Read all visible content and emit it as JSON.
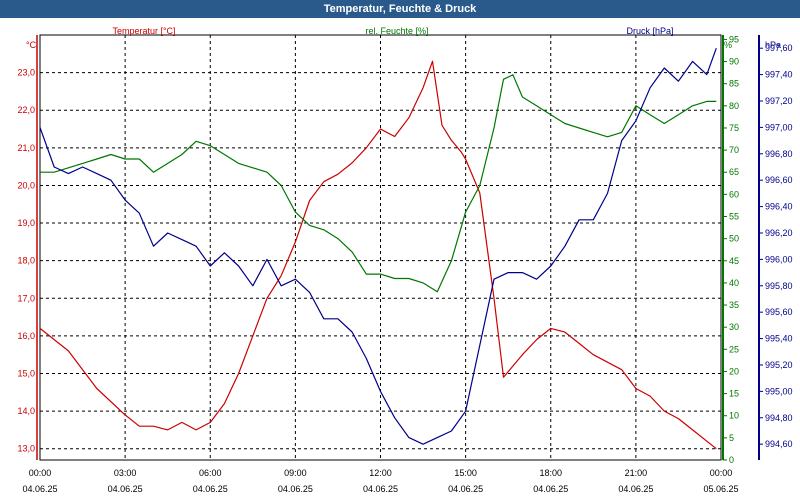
{
  "window_title": "Temperatur, Feuchte & Druck",
  "chart_data": {
    "type": "line",
    "title": "Temperatur, Feuchte & Druck",
    "grid": true,
    "x_ticks": [
      {
        "time": "00:00",
        "date": "04.06.25"
      },
      {
        "time": "03:00",
        "date": "04.06.25"
      },
      {
        "time": "06:00",
        "date": "04.06.25"
      },
      {
        "time": "09:00",
        "date": "04.06.25"
      },
      {
        "time": "12:00",
        "date": "04.06.25"
      },
      {
        "time": "15:00",
        "date": "04.06.25"
      },
      {
        "time": "18:00",
        "date": "04.06.25"
      },
      {
        "time": "21:00",
        "date": "04.06.25"
      },
      {
        "time": "00:00",
        "date": "05.06.25"
      }
    ],
    "axes": {
      "temperature": {
        "label": "Temperatur [°C]",
        "unit": "°C",
        "color": "#cc0000",
        "range": [
          12.7,
          24.0
        ],
        "ticks": [
          "13,0",
          "14,0",
          "15,0",
          "16,0",
          "17,0",
          "18,0",
          "19,0",
          "20,0",
          "21,0",
          "22,0",
          "23,0"
        ]
      },
      "humidity": {
        "label": "rel. Feuchte [%]",
        "unit": "%",
        "color": "#007700",
        "range": [
          0,
          96
        ],
        "ticks": [
          "0",
          "5",
          "10",
          "15",
          "20",
          "25",
          "30",
          "35",
          "40",
          "45",
          "50",
          "55",
          "60",
          "65",
          "70",
          "75",
          "80",
          "85",
          "90",
          "95"
        ]
      },
      "pressure": {
        "label": "Druck [hPa]",
        "unit": "hPa",
        "color": "#00008b",
        "range": [
          994.48,
          997.7
        ],
        "ticks": [
          "994,60",
          "994,80",
          "995,00",
          "995,20",
          "995,40",
          "995,60",
          "995,80",
          "996,00",
          "996,20",
          "996,40",
          "996,60",
          "996,80",
          "997,00",
          "997,20",
          "997,40",
          "997,60"
        ]
      }
    },
    "series": [
      {
        "name": "Temperatur [°C]",
        "axis": "temperature",
        "color": "#cc0000",
        "x": [
          "00:00",
          "01:00",
          "02:00",
          "03:00",
          "03:30",
          "04:00",
          "04:30",
          "05:00",
          "05:30",
          "06:00",
          "06:30",
          "07:00",
          "07:30",
          "08:00",
          "08:30",
          "09:00",
          "09:30",
          "10:00",
          "10:30",
          "11:00",
          "11:30",
          "12:00",
          "12:30",
          "13:00",
          "13:30",
          "13:50",
          "14:10",
          "14:30",
          "14:50",
          "15:00",
          "15:30",
          "16:00",
          "16:20",
          "16:40",
          "17:00",
          "17:30",
          "18:00",
          "18:30",
          "19:00",
          "19:30",
          "20:00",
          "20:30",
          "21:00",
          "21:30",
          "22:00",
          "22:30",
          "23:00",
          "23:30",
          "23:50"
        ],
        "y": [
          16.2,
          15.6,
          14.6,
          13.9,
          13.6,
          13.6,
          13.5,
          13.7,
          13.5,
          13.7,
          14.2,
          15.0,
          16.0,
          17.0,
          17.6,
          18.5,
          19.6,
          20.1,
          20.3,
          20.6,
          21.0,
          21.5,
          21.3,
          21.8,
          22.6,
          23.3,
          21.6,
          21.2,
          20.9,
          20.7,
          19.8,
          17.0,
          14.9,
          15.2,
          15.5,
          15.9,
          16.2,
          16.1,
          15.8,
          15.5,
          15.3,
          15.1,
          14.6,
          14.4,
          14.0,
          13.8,
          13.5,
          13.2,
          13.0
        ]
      },
      {
        "name": "rel. Feuchte [%]",
        "axis": "humidity",
        "color": "#007700",
        "x": [
          "00:00",
          "00:30",
          "01:00",
          "01:30",
          "02:00",
          "02:30",
          "03:00",
          "03:30",
          "04:00",
          "04:30",
          "05:00",
          "05:30",
          "06:00",
          "06:30",
          "07:00",
          "07:30",
          "08:00",
          "08:30",
          "09:00",
          "09:30",
          "10:00",
          "10:30",
          "11:00",
          "11:30",
          "12:00",
          "12:30",
          "13:00",
          "13:30",
          "14:00",
          "14:30",
          "15:00",
          "15:30",
          "16:00",
          "16:20",
          "16:40",
          "17:00",
          "17:30",
          "18:00",
          "18:30",
          "19:00",
          "19:30",
          "20:00",
          "20:30",
          "21:00",
          "21:30",
          "22:00",
          "22:30",
          "23:00",
          "23:30",
          "23:50"
        ],
        "y": [
          65,
          65,
          66,
          67,
          68,
          69,
          68,
          68,
          65,
          67,
          69,
          72,
          71,
          69,
          67,
          66,
          65,
          62,
          56,
          53,
          52,
          50,
          47,
          42,
          42,
          41,
          41,
          40,
          38,
          45,
          56,
          62,
          75,
          86,
          87,
          82,
          80,
          78,
          76,
          75,
          74,
          73,
          74,
          80,
          78,
          76,
          78,
          80,
          81,
          81
        ]
      },
      {
        "name": "Druck [hPa]",
        "axis": "pressure",
        "color": "#00008b",
        "x": [
          "00:00",
          "00:30",
          "01:00",
          "01:30",
          "02:00",
          "02:30",
          "03:00",
          "03:30",
          "04:00",
          "04:30",
          "05:00",
          "05:30",
          "06:00",
          "06:30",
          "07:00",
          "07:30",
          "08:00",
          "08:30",
          "09:00",
          "09:30",
          "10:00",
          "10:30",
          "11:00",
          "11:30",
          "12:00",
          "12:30",
          "13:00",
          "13:30",
          "14:00",
          "14:30",
          "15:00",
          "15:30",
          "16:00",
          "16:30",
          "17:00",
          "17:30",
          "18:00",
          "18:30",
          "19:00",
          "19:30",
          "20:00",
          "20:30",
          "21:00",
          "21:30",
          "22:00",
          "22:30",
          "23:00",
          "23:30",
          "23:50"
        ],
        "y": [
          997.0,
          996.7,
          996.65,
          996.7,
          996.65,
          996.6,
          996.45,
          996.35,
          996.1,
          996.2,
          996.15,
          996.1,
          995.95,
          996.05,
          995.95,
          995.8,
          996.0,
          995.8,
          995.85,
          995.75,
          995.55,
          995.55,
          995.45,
          995.25,
          995.0,
          994.8,
          994.65,
          994.6,
          994.65,
          994.7,
          994.85,
          995.35,
          995.85,
          995.9,
          995.9,
          995.85,
          995.95,
          996.1,
          996.3,
          996.3,
          996.5,
          996.9,
          997.05,
          997.3,
          997.45,
          997.35,
          997.5,
          997.4,
          997.6
        ]
      }
    ]
  }
}
